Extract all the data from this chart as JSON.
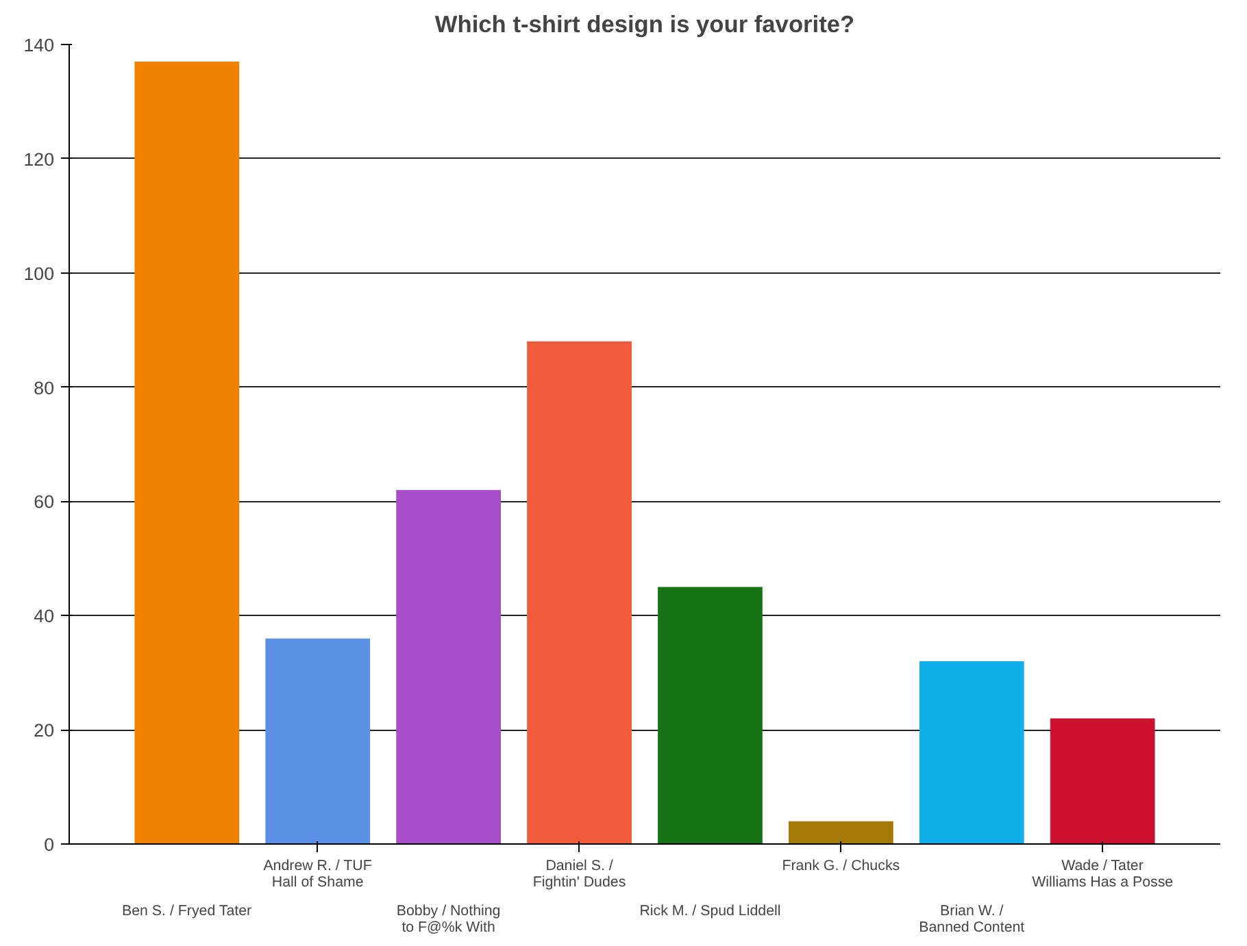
{
  "chart_data": {
    "type": "bar",
    "title": "Which t-shirt design is your favorite?",
    "categories": [
      "Ben S. / Fryed Tater",
      "Andrew R. / TUF\nHall of Shame",
      "Bobby / Nothing\nto F@%k With",
      "Daniel S. /\nFightin' Dudes",
      "Rick M. / Spud Liddell",
      "Frank G. / Chucks",
      "Brian W. /\nBanned Content",
      "Wade / Tater\nWilliams Has a Posse"
    ],
    "values": [
      137,
      36,
      62,
      88,
      45,
      4,
      32,
      22
    ],
    "colors": [
      "#f08200",
      "#5a8fe3",
      "#a64dca",
      "#ef5a3a",
      "#157315",
      "#a57a08",
      "#10aeea",
      "#cc1030"
    ],
    "ylim": [
      0,
      140
    ],
    "yticks": [
      0,
      20,
      40,
      60,
      80,
      100,
      120,
      140
    ],
    "grid": "y"
  }
}
